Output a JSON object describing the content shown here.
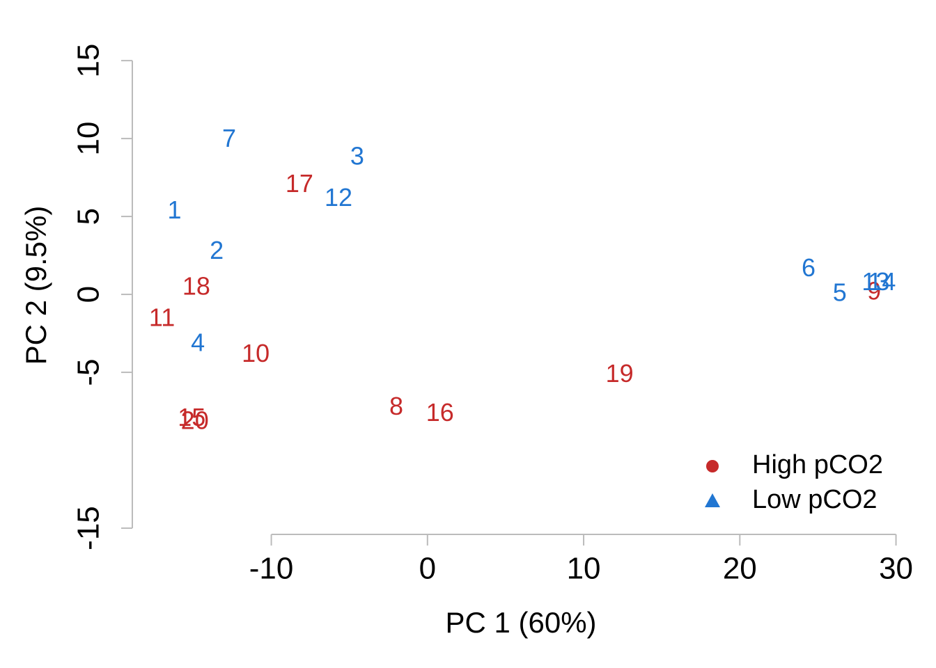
{
  "chart_data": {
    "type": "scatter",
    "xlabel": "PC 1 (60%)",
    "ylabel": "PC 2 (9.5%)",
    "xlim": [
      -18.9,
      30.6
    ],
    "ylim": [
      -15.4,
      16.3
    ],
    "xticks": [
      -10,
      0,
      10,
      20,
      30
    ],
    "yticks": [
      -15,
      -5,
      0,
      5,
      10,
      15
    ],
    "legend": "bottomright",
    "series": [
      {
        "name": "High pCO2",
        "color": "#c62a2a",
        "marker": "circle",
        "labels": [
          "8",
          "9",
          "10",
          "11",
          "15",
          "16",
          "17",
          "18",
          "19",
          "20"
        ],
        "x": [
          -2.0,
          28.6,
          -11.0,
          -17.0,
          -15.1,
          0.8,
          -8.2,
          -14.8,
          12.3,
          -14.9
        ],
        "y": [
          -7.3,
          0.1,
          -3.9,
          -1.6,
          -8.0,
          -7.7,
          7.0,
          0.4,
          -5.2,
          -8.2
        ]
      },
      {
        "name": "Low pCO2",
        "color": "#2176d2",
        "marker": "triangle",
        "labels": [
          "1",
          "2",
          "3",
          "4",
          "5",
          "6",
          "7",
          "12",
          "13",
          "14"
        ],
        "x": [
          -16.2,
          -13.5,
          -4.5,
          -14.7,
          26.4,
          24.4,
          -12.7,
          -5.7,
          28.7,
          29.1
        ],
        "y": [
          5.3,
          2.7,
          8.75,
          -3.2,
          0.0,
          1.6,
          9.9,
          6.1,
          0.7,
          0.7
        ]
      }
    ]
  }
}
